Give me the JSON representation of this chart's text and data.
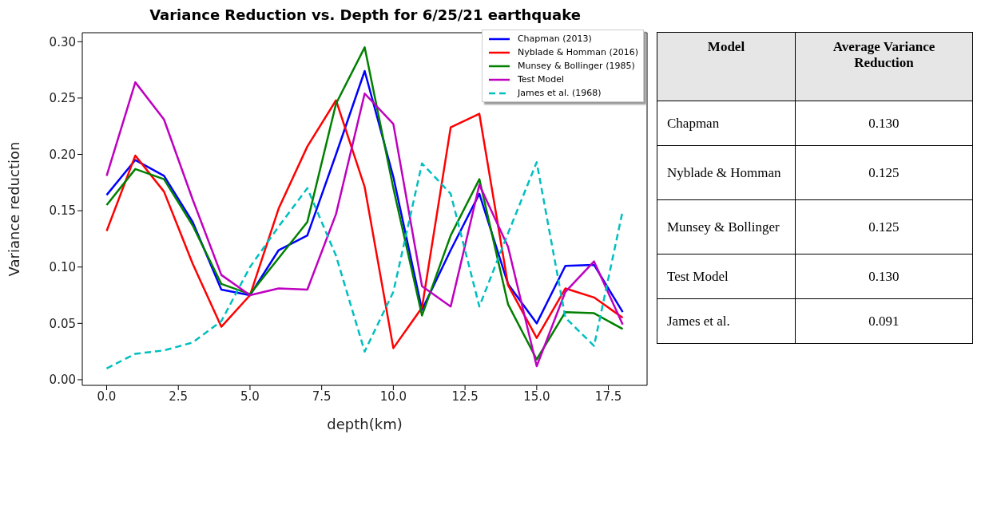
{
  "chart_data": [
    {
      "type": "line",
      "title": "Variance Reduction vs. Depth for 6/25/21 earthquake",
      "xlabel": "depth(km)",
      "ylabel": "Variance reduction",
      "x": [
        0,
        1,
        2,
        3,
        4,
        5,
        6,
        7,
        8,
        9,
        10,
        11,
        12,
        13,
        14,
        15,
        16,
        17,
        18
      ],
      "series": [
        {
          "name": "Chapman (2013)",
          "color": "#0000ff",
          "values": [
            0.164,
            0.195,
            0.181,
            0.14,
            0.08,
            0.075,
            0.115,
            0.128,
            0.2,
            0.274,
            0.18,
            0.062,
            0.115,
            0.165,
            0.085,
            0.05,
            0.101,
            0.102,
            0.06
          ]
        },
        {
          "name": "Nyblade & Homman (2016)",
          "color": "#ff0000",
          "values": [
            0.132,
            0.199,
            0.167,
            0.103,
            0.047,
            0.075,
            0.152,
            0.207,
            0.248,
            0.171,
            0.028,
            0.064,
            0.224,
            0.236,
            0.084,
            0.037,
            0.081,
            0.073,
            0.055
          ]
        },
        {
          "name": "Munsey & Bollinger (1985)",
          "color": "#008000",
          "values": [
            0.155,
            0.187,
            0.178,
            0.137,
            0.085,
            0.076,
            0.108,
            0.14,
            0.245,
            0.295,
            0.17,
            0.057,
            0.128,
            0.178,
            0.067,
            0.018,
            0.06,
            0.059,
            0.045
          ]
        },
        {
          "name": "Test Model",
          "color": "#bf00bf",
          "values": [
            0.181,
            0.264,
            0.231,
            0.16,
            0.093,
            0.075,
            0.081,
            0.08,
            0.147,
            0.254,
            0.227,
            0.083,
            0.065,
            0.173,
            0.118,
            0.012,
            0.078,
            0.105,
            0.049
          ]
        },
        {
          "name": "James et al. (1968)",
          "color": "#00bfbf",
          "line_style": "dashed",
          "values": [
            0.01,
            0.023,
            0.026,
            0.033,
            0.052,
            0.1,
            0.136,
            0.17,
            0.11,
            0.025,
            0.078,
            0.192,
            0.165,
            0.065,
            0.13,
            0.193,
            0.055,
            0.03,
            0.15
          ]
        }
      ],
      "xlim": [
        -0.85,
        18.85
      ],
      "ylim": [
        -0.005,
        0.308
      ],
      "xticks": [
        {
          "value": 0,
          "label": "0.0"
        },
        {
          "value": 2.5,
          "label": "2.5"
        },
        {
          "value": 5,
          "label": "5.0"
        },
        {
          "value": 7.5,
          "label": "7.5"
        },
        {
          "value": 10,
          "label": "10.0"
        },
        {
          "value": 12.5,
          "label": "12.5"
        },
        {
          "value": 15,
          "label": "15.0"
        },
        {
          "value": 17.5,
          "label": "17.5"
        }
      ],
      "yticks": [
        {
          "value": 0,
          "label": "0.00"
        },
        {
          "value": 0.05,
          "label": "0.05"
        },
        {
          "value": 0.1,
          "label": "0.10"
        },
        {
          "value": 0.15,
          "label": "0.15"
        },
        {
          "value": 0.2,
          "label": "0.20"
        },
        {
          "value": 0.25,
          "label": "0.25"
        },
        {
          "value": 0.3,
          "label": "0.30"
        }
      ],
      "grid": false,
      "legend": "top right",
      "line_style": "solid",
      "marker": "none"
    },
    {
      "type": "other",
      "annotations": [
        "Model",
        "Average Variance Reduction"
      ],
      "categories": [
        "Chapman",
        "Nyblade & Homman",
        "Munsey & Bollinger",
        "Test Model",
        "James et al."
      ],
      "value_labels": [
        "0.130",
        "0.125",
        "0.125",
        "0.130",
        "0.091"
      ]
    }
  ]
}
